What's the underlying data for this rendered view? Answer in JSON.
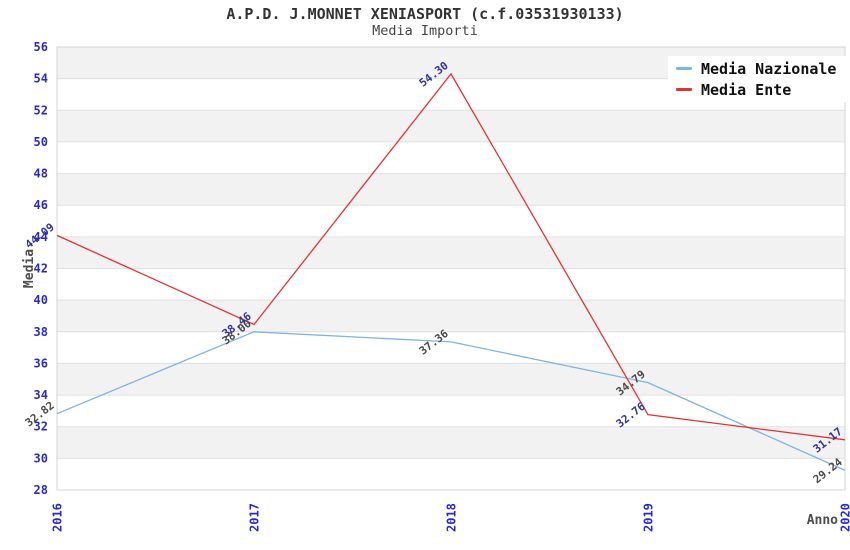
{
  "title": "A.P.D. J.MONNET XENIASPORT (c.f.03531930133)",
  "subtitle": "Media Importi",
  "legend": {
    "position": "top-right",
    "items": [
      {
        "label": "Media Nazionale",
        "color": "#7FB3E1"
      },
      {
        "label": "Media Ente",
        "color": "#E23333"
      }
    ]
  },
  "chart_data": {
    "type": "line",
    "title": "A.P.D. J.MONNET XENIASPORT (c.f.03531930133)",
    "subtitle": "Media Importi",
    "xlabel": "Anno",
    "ylabel": "Media",
    "x": [
      2016,
      2017,
      2018,
      2019,
      2020
    ],
    "x_tick_labels": [
      "2016",
      "2017",
      "2018",
      "2019",
      "2020"
    ],
    "ylim": [
      28,
      56
    ],
    "y_tick_step": 2,
    "y_tick_labels": [
      "28",
      "30",
      "32",
      "34",
      "36",
      "38",
      "40",
      "42",
      "44",
      "46",
      "48",
      "50",
      "52",
      "54",
      "56"
    ],
    "grid": "horizontal-bands",
    "legend_position": "top-right",
    "series": [
      {
        "name": "Media Nazionale",
        "color": "#7FB3E1",
        "values": [
          32.82,
          38.0,
          37.36,
          34.79,
          29.24
        ],
        "labels": [
          "32.82",
          "38.00",
          "37.36",
          "34.79",
          "29.24"
        ],
        "label_color": "#4A4A4A"
      },
      {
        "name": "Media Ente",
        "color": "#E23333",
        "values": [
          44.09,
          38.46,
          54.3,
          32.76,
          31.17
        ],
        "labels": [
          "44.09",
          "38.46",
          "54.30",
          "32.76",
          "31.17"
        ],
        "label_color": "#333399"
      }
    ]
  },
  "colors": {
    "tick_label": "#2A2ACC",
    "axis_title": "#4D4D4D",
    "band": "#F2F2F2",
    "grid_line": "#E0E0E0",
    "plot_border": "#D4D4D4",
    "title": "#333333",
    "subtitle": "#444444"
  }
}
